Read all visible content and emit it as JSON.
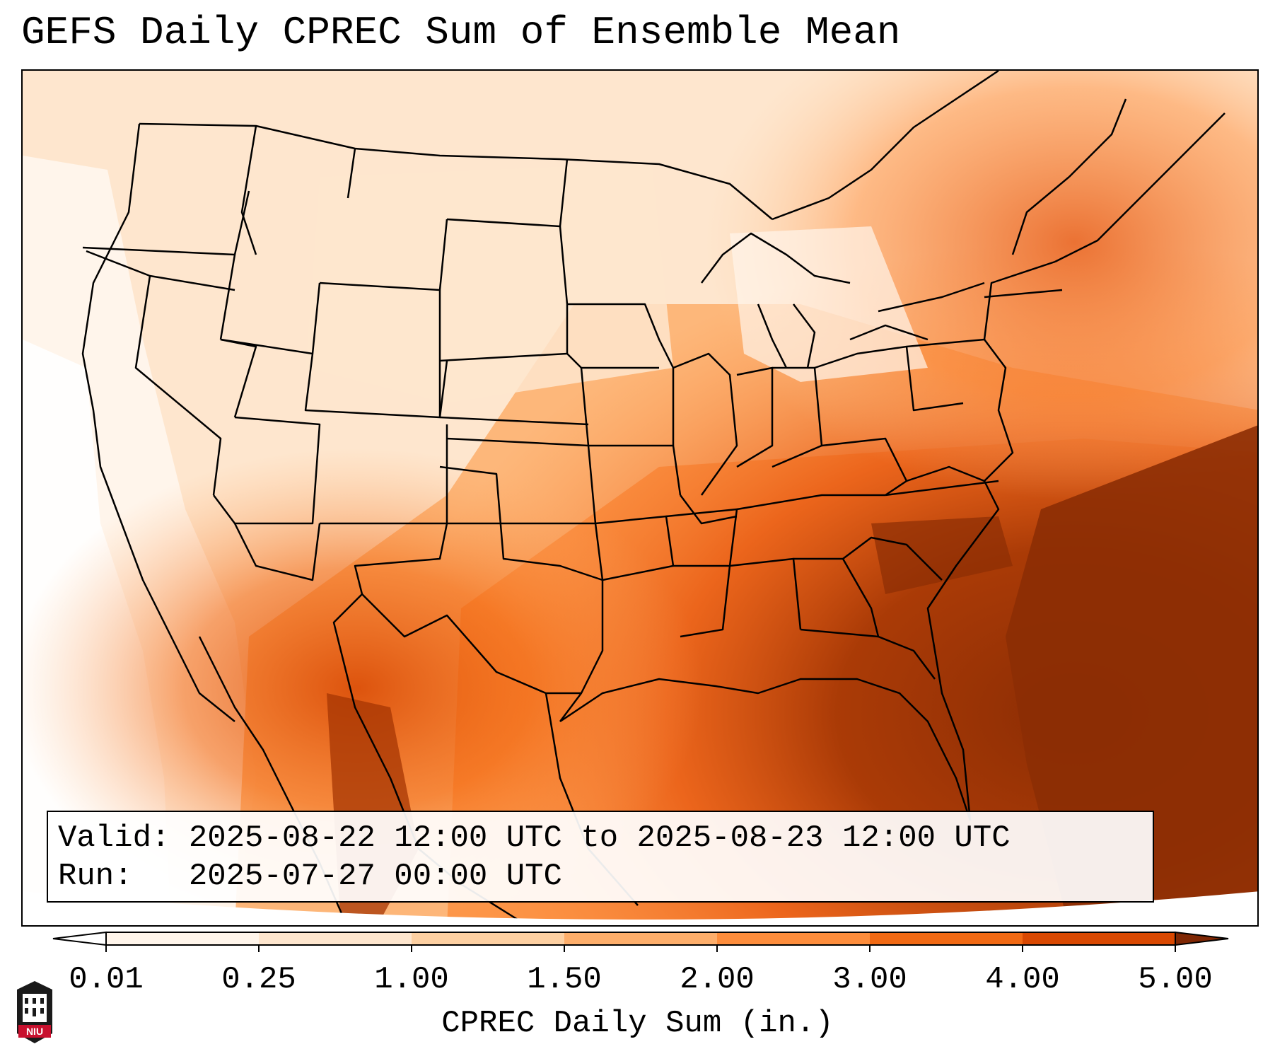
{
  "title": "GEFS Daily CPREC Sum of Ensemble Mean",
  "info": {
    "valid_label": "Valid:",
    "valid_value": "2025-08-22 12:00 UTC to 2025-08-23 12:00 UTC",
    "run_label": "Run:",
    "run_value": "2025-07-27 00:00 UTC"
  },
  "colorbar": {
    "label": "CPREC Daily Sum (in.)",
    "ticks": [
      "0.01",
      "0.25",
      "1.00",
      "1.50",
      "2.00",
      "3.00",
      "4.00",
      "5.00"
    ],
    "colors": [
      "#fff5eb",
      "#fee6ce",
      "#fdd0a2",
      "#fdae6b",
      "#fd8d3c",
      "#f16913",
      "#d94801",
      "#8c2d04"
    ],
    "under_color": "#ffffff",
    "over_color": "#7f2704",
    "extend": "both"
  },
  "map": {
    "projection": "Lambert Conformal",
    "region": "Contiguous United States",
    "field": "CPREC daily sum"
  },
  "logo": {
    "text": "NIU",
    "name": "niu-logo-icon"
  }
}
